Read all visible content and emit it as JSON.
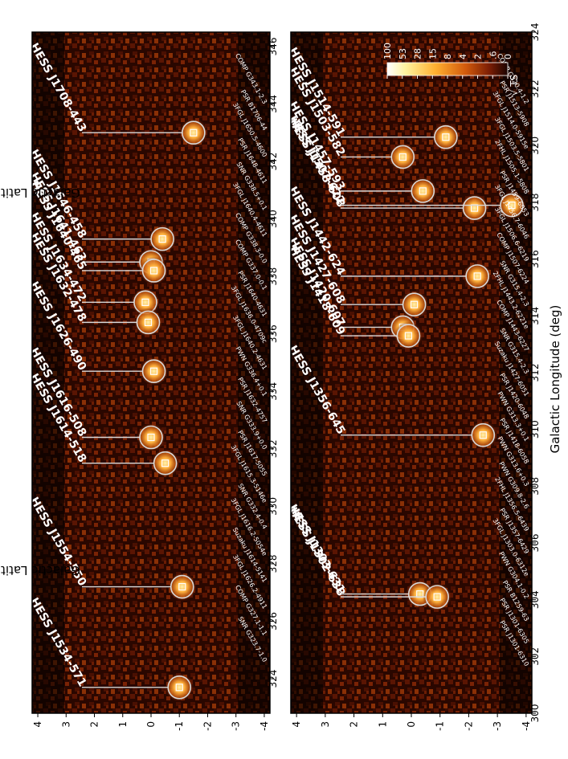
{
  "chart_data": {
    "type": "heatmap",
    "orientation": "rotated-90-clockwise",
    "xlabel": "Galactic Longitude (deg)",
    "ylabel": "Galactic Latitude (deg)",
    "colorbar": {
      "title": "√ TS",
      "ticks": [
        "100",
        "53",
        "28",
        "15",
        "8",
        "4",
        "2",
        ".6",
        "0"
      ]
    },
    "panels": [
      {
        "id": "upper",
        "xlim": [
          346.5,
          322.8
        ],
        "ylim": [
          -4.2,
          4.2
        ],
        "xticks": [
          "346",
          "344",
          "342",
          "340",
          "338",
          "336",
          "334",
          "332",
          "330",
          "328",
          "326",
          "324"
        ],
        "yticks": [
          "4",
          "3",
          "2",
          "1",
          "0",
          "-1",
          "-2",
          "-3",
          "-4"
        ],
        "sources": [
          {
            "name": "HESS J1708-443",
            "l": 343.0,
            "b": -1.5
          },
          {
            "name": "HESS J1646-458",
            "l": 339.3,
            "b": -0.4
          },
          {
            "name": "HESS J1641-463",
            "l": 338.5,
            "b": 0.0
          },
          {
            "name": "HESS J1640-465",
            "l": 338.2,
            "b": -0.1
          },
          {
            "name": "HESS J1634-472",
            "l": 337.1,
            "b": 0.2
          },
          {
            "name": "HESS J1632-478",
            "l": 336.4,
            "b": 0.1
          },
          {
            "name": "HESS J1626-490",
            "l": 334.7,
            "b": -0.1
          },
          {
            "name": "HESS J1616-508",
            "l": 332.4,
            "b": 0.0
          },
          {
            "name": "HESS J1614-518",
            "l": 331.5,
            "b": -0.5
          },
          {
            "name": "HESS J1554-550",
            "l": 327.2,
            "b": -1.1
          },
          {
            "name": "HESS J1534-571",
            "l": 323.7,
            "b": -1.0
          }
        ],
        "labels": [
          "COMP G343.1-2.3",
          "PSR B1706-44",
          "3FGL J1650.5-4600",
          "PSR J1648-4611",
          "SNR G338.5+0.1",
          "3FGL J1640.4-4611",
          "COMP G338.3-0.0",
          "COMP G337.0-0.1",
          "PSR J1640-4631",
          "3FGL J1636.0-4709c",
          "3FGL J1640.2-4631",
          "PWN G336.4+0.1",
          "PSR J1632-4757",
          "SNR G333.9+0.0",
          "PSR J1617-5055",
          "3FGL J1615.3-5146e",
          "SNR G332.4-0.4",
          "3FGL J1616.2-5054e",
          "Suzaku J1614-5141",
          "3FGL J1626.2-4911",
          "COMP G327.1-1.1",
          "SNR G323.7-1.0"
        ]
      },
      {
        "id": "lower",
        "xlim": [
          324.0,
          300.0
        ],
        "ylim": [
          -4.2,
          4.2
        ],
        "xticks": [
          "324",
          "322",
          "320",
          "318",
          "316",
          "314",
          "312",
          "310",
          "308",
          "306",
          "304",
          "302",
          "300"
        ],
        "yticks": [
          "4",
          "3",
          "2",
          "1",
          "0",
          "-1",
          "-2",
          "-3",
          "-4"
        ],
        "sources": [
          {
            "name": "HESS J1514-591",
            "l": 320.3,
            "b": -1.2
          },
          {
            "name": "HESS J1503-582",
            "l": 319.6,
            "b": 0.3
          },
          {
            "name": "HESS J1457-593",
            "l": 318.4,
            "b": -0.4
          },
          {
            "name": "HESS J1458-608",
            "l": 317.8,
            "b": -2.2
          },
          {
            "name": "HESS J1507-622",
            "l": 317.9,
            "b": -3.5
          },
          {
            "name": "HESS J1442-624",
            "l": 315.4,
            "b": -2.3
          },
          {
            "name": "HESS J1427-608",
            "l": 314.4,
            "b": -0.1
          },
          {
            "name": "HESS J1420-607",
            "l": 313.6,
            "b": 0.3
          },
          {
            "name": "HESS J1418-609",
            "l": 313.3,
            "b": 0.1
          },
          {
            "name": "HESS J1356-645",
            "l": 309.8,
            "b": -2.5
          },
          {
            "name": "HESS J1303-631",
            "l": 304.2,
            "b": -0.3
          },
          {
            "name": "HESS J1302-638",
            "l": 304.1,
            "b": -0.9
          }
        ],
        "labels": [
          "COMP G320.4-1.2",
          "PSR J1513-5908",
          "3FGL J1514.0-5915e",
          "3FGL J1503.5-5801",
          "2FHL J1505.1-5808",
          "PSR J1459-6053",
          "3FGL J1456.7-6046",
          "3FGL J1506.6-6219",
          "COMP J1507-6224",
          "SNR G315.4-2.3",
          "2FHL J1443.2-6221e",
          "COMP J1443-6227",
          "SNR G315.4-2.3",
          "Suzaku J1427-6051",
          "PSR J1420-6048",
          "PWN G313.3+0.1",
          "PSR J1418-6058",
          "PWN G313.6+0.3",
          "PWN G309.8-2.6",
          "2FHL J1356.5-6439",
          "PSR J1357-6429",
          "3FGL J1303.0-6312e",
          "PWN G304.1-0.2",
          "PSR B1259-63",
          "PSR J1301-6305",
          "PSR J1301-6310"
        ]
      }
    ]
  },
  "colors": {
    "background": "#ffffff",
    "map_dark": "#1a0300",
    "map_mid": "#8b2a05",
    "map_hot": "#ffeaa0",
    "marker": "#d9d9d9"
  }
}
